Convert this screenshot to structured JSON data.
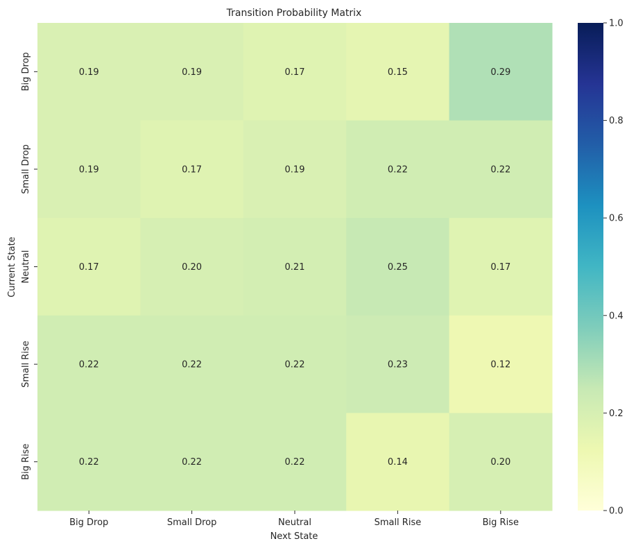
{
  "chart_data": {
    "type": "heatmap",
    "title": "Transition Probability Matrix",
    "xlabel": "Next State",
    "ylabel": "Current State",
    "x_categories": [
      "Big Drop",
      "Small Drop",
      "Neutral",
      "Small Rise",
      "Big Rise"
    ],
    "y_categories": [
      "Big Drop",
      "Small Drop",
      "Neutral",
      "Small Rise",
      "Big Rise"
    ],
    "values": [
      [
        0.19,
        0.19,
        0.17,
        0.15,
        0.29
      ],
      [
        0.19,
        0.17,
        0.19,
        0.22,
        0.22
      ],
      [
        0.17,
        0.2,
        0.21,
        0.25,
        0.17
      ],
      [
        0.22,
        0.22,
        0.22,
        0.23,
        0.12
      ],
      [
        0.22,
        0.22,
        0.22,
        0.14,
        0.2
      ]
    ],
    "value_labels": [
      [
        "0.19",
        "0.19",
        "0.17",
        "0.15",
        "0.29"
      ],
      [
        "0.19",
        "0.17",
        "0.19",
        "0.22",
        "0.22"
      ],
      [
        "0.17",
        "0.20",
        "0.21",
        "0.25",
        "0.17"
      ],
      [
        "0.22",
        "0.22",
        "0.22",
        "0.23",
        "0.12"
      ],
      [
        "0.22",
        "0.22",
        "0.22",
        "0.14",
        "0.20"
      ]
    ],
    "colormap": "YlGnBu",
    "vmin": 0.0,
    "vmax": 1.0,
    "colorbar_ticks": [
      "0.0",
      "0.2",
      "0.4",
      "0.6",
      "0.8",
      "1.0"
    ],
    "colorbar_tick_values": [
      0.0,
      0.2,
      0.4,
      0.6,
      0.8,
      1.0
    ],
    "colormap_stops": [
      "#ffffd9",
      "#edf8b1",
      "#c7e9b4",
      "#7fcdbb",
      "#41b6c4",
      "#1d91c0",
      "#225ea8",
      "#253494",
      "#081d58"
    ]
  }
}
